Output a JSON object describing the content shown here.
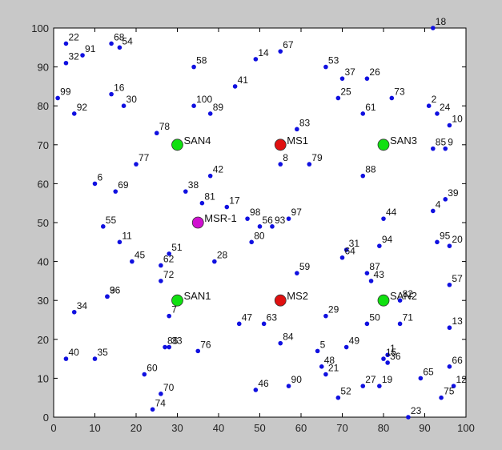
{
  "chart_data": {
    "type": "scatter",
    "xlim": [
      0,
      100
    ],
    "ylim": [
      0,
      100
    ],
    "xticks": [
      0,
      10,
      20,
      30,
      40,
      50,
      60,
      70,
      80,
      90,
      100
    ],
    "yticks": [
      0,
      10,
      20,
      30,
      40,
      50,
      60,
      70,
      80,
      90,
      100
    ],
    "grid": false,
    "colors": {
      "nodes": "#1010e0",
      "ms": "#e01010",
      "san": "#10e010",
      "msr": "#d010d0"
    },
    "points": [
      {
        "label": "1",
        "x": 81,
        "y": 16
      },
      {
        "label": "2",
        "x": 91,
        "y": 80
      },
      {
        "label": "3",
        "x": 13,
        "y": 31
      },
      {
        "label": "4",
        "x": 92,
        "y": 53
      },
      {
        "label": "5",
        "x": 64,
        "y": 17
      },
      {
        "label": "6",
        "x": 10,
        "y": 60
      },
      {
        "label": "7",
        "x": 28,
        "y": 26
      },
      {
        "label": "8",
        "x": 55,
        "y": 65
      },
      {
        "label": "9",
        "x": 95,
        "y": 69
      },
      {
        "label": "10",
        "x": 96,
        "y": 75
      },
      {
        "label": "11",
        "x": 16,
        "y": 45
      },
      {
        "label": "12",
        "x": 97,
        "y": 8
      },
      {
        "label": "13",
        "x": 96,
        "y": 23
      },
      {
        "label": "14",
        "x": 49,
        "y": 92
      },
      {
        "label": "15",
        "x": 80,
        "y": 15
      },
      {
        "label": "16",
        "x": 14,
        "y": 83
      },
      {
        "label": "17",
        "x": 42,
        "y": 54
      },
      {
        "label": "18",
        "x": 92,
        "y": 100
      },
      {
        "label": "19",
        "x": 79,
        "y": 8
      },
      {
        "label": "20",
        "x": 96,
        "y": 44
      },
      {
        "label": "21",
        "x": 66,
        "y": 11
      },
      {
        "label": "22",
        "x": 3,
        "y": 96
      },
      {
        "label": "23",
        "x": 86,
        "y": 0
      },
      {
        "label": "24",
        "x": 93,
        "y": 78
      },
      {
        "label": "25",
        "x": 69,
        "y": 82
      },
      {
        "label": "26",
        "x": 76,
        "y": 87
      },
      {
        "label": "27",
        "x": 75,
        "y": 8
      },
      {
        "label": "28",
        "x": 39,
        "y": 40
      },
      {
        "label": "29",
        "x": 66,
        "y": 26
      },
      {
        "label": "30",
        "x": 17,
        "y": 80
      },
      {
        "label": "31",
        "x": 71,
        "y": 43
      },
      {
        "label": "32",
        "x": 3,
        "y": 91
      },
      {
        "label": "33",
        "x": 28,
        "y": 18
      },
      {
        "label": "34",
        "x": 5,
        "y": 27
      },
      {
        "label": "35",
        "x": 10,
        "y": 15
      },
      {
        "label": "36",
        "x": 81,
        "y": 14
      },
      {
        "label": "37",
        "x": 70,
        "y": 87
      },
      {
        "label": "38",
        "x": 32,
        "y": 58
      },
      {
        "label": "39",
        "x": 95,
        "y": 56
      },
      {
        "label": "40",
        "x": 3,
        "y": 15
      },
      {
        "label": "41",
        "x": 44,
        "y": 85
      },
      {
        "label": "42",
        "x": 38,
        "y": 62
      },
      {
        "label": "43",
        "x": 77,
        "y": 35
      },
      {
        "label": "44",
        "x": 80,
        "y": 51
      },
      {
        "label": "45",
        "x": 19,
        "y": 40
      },
      {
        "label": "46",
        "x": 49,
        "y": 7
      },
      {
        "label": "47",
        "x": 45,
        "y": 24
      },
      {
        "label": "48",
        "x": 65,
        "y": 13
      },
      {
        "label": "49",
        "x": 71,
        "y": 18
      },
      {
        "label": "50",
        "x": 76,
        "y": 24
      },
      {
        "label": "51",
        "x": 28,
        "y": 42
      },
      {
        "label": "52",
        "x": 69,
        "y": 5
      },
      {
        "label": "53",
        "x": 66,
        "y": 90
      },
      {
        "label": "54",
        "x": 16,
        "y": 95
      },
      {
        "label": "55",
        "x": 12,
        "y": 49
      },
      {
        "label": "56",
        "x": 50,
        "y": 49
      },
      {
        "label": "57",
        "x": 96,
        "y": 34
      },
      {
        "label": "58",
        "x": 34,
        "y": 90
      },
      {
        "label": "59",
        "x": 59,
        "y": 37
      },
      {
        "label": "60",
        "x": 22,
        "y": 11
      },
      {
        "label": "61",
        "x": 75,
        "y": 78
      },
      {
        "label": "62",
        "x": 26,
        "y": 39
      },
      {
        "label": "63",
        "x": 51,
        "y": 24
      },
      {
        "label": "64",
        "x": 70,
        "y": 41
      },
      {
        "label": "65",
        "x": 89,
        "y": 10
      },
      {
        "label": "66",
        "x": 96,
        "y": 13
      },
      {
        "label": "67",
        "x": 55,
        "y": 94
      },
      {
        "label": "68",
        "x": 14,
        "y": 96
      },
      {
        "label": "69",
        "x": 15,
        "y": 58
      },
      {
        "label": "70",
        "x": 26,
        "y": 6
      },
      {
        "label": "71",
        "x": 84,
        "y": 24
      },
      {
        "label": "72",
        "x": 26,
        "y": 35
      },
      {
        "label": "73",
        "x": 82,
        "y": 82
      },
      {
        "label": "74",
        "x": 24,
        "y": 2
      },
      {
        "label": "75",
        "x": 94,
        "y": 5
      },
      {
        "label": "76",
        "x": 35,
        "y": 17
      },
      {
        "label": "77",
        "x": 20,
        "y": 65
      },
      {
        "label": "78",
        "x": 25,
        "y": 73
      },
      {
        "label": "79",
        "x": 62,
        "y": 65
      },
      {
        "label": "80",
        "x": 48,
        "y": 45
      },
      {
        "label": "81",
        "x": 36,
        "y": 55
      },
      {
        "label": "82",
        "x": 84,
        "y": 30
      },
      {
        "label": "83",
        "x": 59,
        "y": 74
      },
      {
        "label": "84",
        "x": 55,
        "y": 19
      },
      {
        "label": "85",
        "x": 92,
        "y": 69
      },
      {
        "label": "86",
        "x": 27,
        "y": 18
      },
      {
        "label": "87",
        "x": 76,
        "y": 37
      },
      {
        "label": "88",
        "x": 75,
        "y": 62
      },
      {
        "label": "89",
        "x": 38,
        "y": 78
      },
      {
        "label": "90",
        "x": 57,
        "y": 8
      },
      {
        "label": "91",
        "x": 7,
        "y": 93
      },
      {
        "label": "92",
        "x": 5,
        "y": 78
      },
      {
        "label": "93",
        "x": 53,
        "y": 49
      },
      {
        "label": "94",
        "x": 79,
        "y": 44
      },
      {
        "label": "95",
        "x": 93,
        "y": 45
      },
      {
        "label": "96",
        "x": 13,
        "y": 31
      },
      {
        "label": "97",
        "x": 57,
        "y": 51
      },
      {
        "label": "98",
        "x": 47,
        "y": 51
      },
      {
        "label": "99",
        "x": 1,
        "y": 82
      },
      {
        "label": "100",
        "x": 34,
        "y": 80
      }
    ],
    "special_nodes": [
      {
        "label": "SAN4",
        "x": 30,
        "y": 70,
        "kind": "san"
      },
      {
        "label": "MS1",
        "x": 55,
        "y": 70,
        "kind": "ms"
      },
      {
        "label": "SAN3",
        "x": 80,
        "y": 70,
        "kind": "san"
      },
      {
        "label": "MSR-1",
        "x": 35,
        "y": 50,
        "kind": "msr"
      },
      {
        "label": "SAN1",
        "x": 30,
        "y": 30,
        "kind": "san"
      },
      {
        "label": "MS2",
        "x": 55,
        "y": 30,
        "kind": "ms"
      },
      {
        "label": "SAN2",
        "x": 80,
        "y": 30,
        "kind": "san"
      }
    ]
  }
}
